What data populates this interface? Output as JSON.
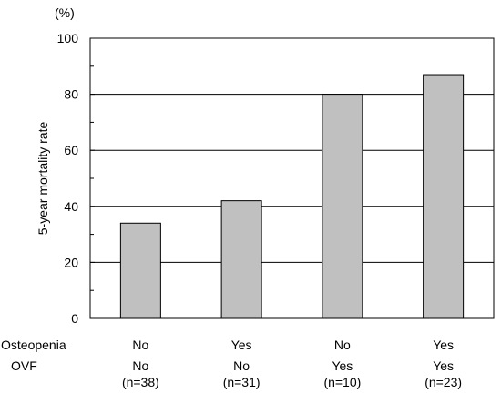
{
  "chart_data": {
    "type": "bar",
    "unit_label": "(%)",
    "ylabel": "5-year mortality rate",
    "ylim": [
      0,
      100
    ],
    "y_ticks": [
      0,
      20,
      40,
      60,
      80,
      100
    ],
    "grid": true,
    "bar_color": "#c0c0c0",
    "row_labels": [
      "Osteopenia",
      "OVF"
    ],
    "categories": [
      {
        "osteopenia": "No",
        "ovf": "No",
        "n": "(n=38)",
        "value": 34
      },
      {
        "osteopenia": "Yes",
        "ovf": "No",
        "n": "(n=31)",
        "value": 42
      },
      {
        "osteopenia": "No",
        "ovf": "Yes",
        "n": "(n=10)",
        "value": 80
      },
      {
        "osteopenia": "Yes",
        "ovf": "Yes",
        "n": "(n=23)",
        "value": 87
      }
    ]
  }
}
